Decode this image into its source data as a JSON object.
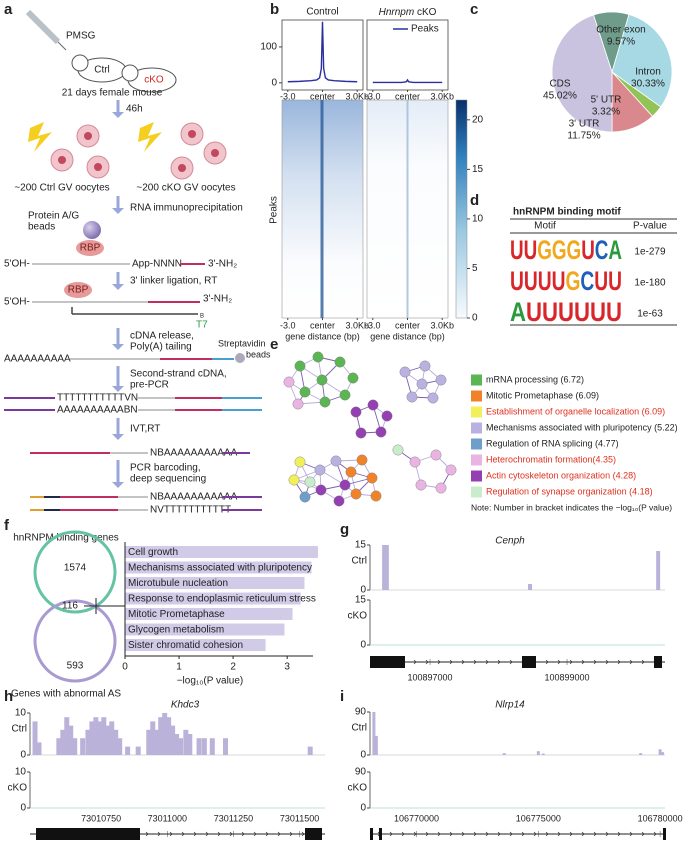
{
  "panel_labels": [
    "a",
    "b",
    "c",
    "d",
    "e",
    "f",
    "g",
    "h",
    "i"
  ],
  "workflow": {
    "injection": "PMSG",
    "ctrl": "Ctrl",
    "cko": "cKO",
    "mouse": "21 days female mouse",
    "time": "46h",
    "ctrl_oocytes": "~200 Ctrl GV oocytes",
    "cko_oocytes": "~200 cKO GV oocytes",
    "steps": [
      [
        "RNA immunoprecipitation"
      ],
      [
        "3' linker ligation, RT"
      ],
      [
        "cDNA release,",
        "Poly(A) tailing"
      ],
      [
        "Second-strand cDNA,",
        "pre-PCR"
      ],
      [
        "IVT,RT"
      ],
      [
        "PCR barcoding,",
        "deep sequencing"
      ]
    ],
    "beads": [
      "Protein A/G",
      "beads"
    ],
    "rbp": "RBP",
    "five_oh": "5'OH-",
    "linker": "App-NNNN",
    "three_nh2": "3'-NH₂",
    "b": "B",
    "t7": "T7",
    "strep": [
      "Streptavidin",
      "beads"
    ],
    "polya": "AAAAAAAAAA",
    "seqs": [
      "TTTTTTTTTTTVN",
      "AAAAAAAAAABN",
      "NBAAAAAAAAAAA",
      "NBAAAAAAAAAAA",
      "NVTTTTTTTTTTT"
    ]
  },
  "motif": {
    "title": "hnRNPM binding motif",
    "header": [
      "Motif",
      "P-value"
    ],
    "rows": [
      {
        "motif": "UUGGGUCA",
        "p": "1e-279"
      },
      {
        "motif": "UUUUGCUU",
        "p": "1e-180"
      },
      {
        "motif": "AUUUUUU",
        "p": "1e-63"
      }
    ],
    "letter_colors": {
      "U": "#d8262b",
      "G": "#f2a81d",
      "C": "#1f5fb8",
      "A": "#2b9a3c"
    }
  },
  "network": {
    "legend": [
      {
        "label": "mRNA processing (6.72)",
        "color": "#5ab552",
        "label_color": "#222222"
      },
      {
        "label": "Mitotic Prometaphase (6.09)",
        "color": "#f0832a",
        "label_color": "#222222"
      },
      {
        "label": "Establishment of organelle localization (6.09)",
        "color": "#f2f05a",
        "label_color": "#e0301e"
      },
      {
        "label": "Mechanisms associated with pluripotency (5.22)",
        "color": "#b9b1df",
        "label_color": "#222222"
      },
      {
        "label": "Regulation of RNA splicing (4.77)",
        "color": "#6d9fca",
        "label_color": "#222222"
      },
      {
        "label": "Heterochromatin formation(4.35)",
        "color": "#e9b3e2",
        "label_color": "#e0301e"
      },
      {
        "label": "Actin cytoskeleton organization (4.28)",
        "color": "#9440b3",
        "label_color": "#e0301e"
      },
      {
        "label": "Regulation of synapse organization (4.18)",
        "color": "#c9eccb",
        "label_color": "#e0301e"
      }
    ],
    "note": "Note: Number in bracket indicates the −log₁₀(P value)"
  },
  "chart_data": [
    {
      "type": "pie",
      "categories": [
        "Other exon",
        "Intron",
        "5' UTR",
        "3' UTR",
        "CDS"
      ],
      "values": [
        9.57,
        30.33,
        3.32,
        11.75,
        45.02
      ],
      "value_labels": [
        "9.57%",
        "30.33%",
        "3.32%",
        "11.75%",
        "45.02%"
      ],
      "colors": [
        "#6e9b8a",
        "#a6d9e3",
        "#92c356",
        "#d9888d",
        "#cac3e0"
      ]
    },
    {
      "type": "hbar",
      "categories": [
        "Cell growth",
        "Mechanisms associated with pluripotency",
        "Microtubule nucleation",
        "Response to endoplasmic reticulum stress",
        "Mitotic Prometaphase",
        "Glycogen metabolism",
        "Sister chromatid cohesion"
      ],
      "values": [
        3.57,
        3.45,
        3.32,
        3.25,
        3.1,
        2.95,
        2.6
      ],
      "color": "#d1cbe8",
      "xlim": [
        0,
        3.7
      ],
      "xticks": [
        0,
        1,
        2,
        3
      ],
      "x_label": "−log₁₀(P value)",
      "venn": {
        "sets": [
          "hnRNPM binding genes",
          "Genes with abnormal AS"
        ],
        "counts": [
          1574,
          116,
          593
        ],
        "colors": [
          "#64c3a2",
          "#a99bd2"
        ]
      }
    },
    {
      "type": "profile",
      "panels": [
        {
          "title": "Control",
          "values": [
            3,
            4,
            6,
            8,
            14,
            40,
            170,
            40,
            14,
            8,
            6,
            4,
            3
          ]
        },
        {
          "title": "Hnrnpm cKO",
          "values": [
            1,
            1,
            1,
            1,
            2,
            3,
            8,
            3,
            2,
            1,
            1,
            1,
            1
          ]
        }
      ],
      "x": [
        -3,
        -2,
        -1,
        -0.5,
        -0.25,
        -0.1,
        0,
        0.1,
        0.25,
        0.5,
        1,
        2,
        3
      ],
      "color": "#2b2f9e",
      "legend": "Peaks",
      "xlim": [
        -3.5,
        3.5
      ],
      "xticks": [
        {
          "value": -3,
          "label": "-3.0"
        },
        {
          "value": 0,
          "label": "center"
        },
        {
          "value": 3,
          "label": "3.0Kb"
        }
      ],
      "ylim": [
        -20,
        175
      ],
      "yticks": [
        0,
        100
      ],
      "y_label": "Peaks",
      "x_label": "gene distance (bp)",
      "colorbar": {
        "lim": [
          0,
          22
        ],
        "ticks": [
          0,
          5,
          10,
          15,
          20
        ]
      }
    },
    {
      "type": "track",
      "title": "Cenph",
      "track_labels": [
        "Ctrl",
        "cKO"
      ],
      "color": "#bbb2da",
      "ylim": [
        0,
        15
      ],
      "yticks": [
        0,
        15
      ],
      "xlim": [
        100896124,
        100900430
      ],
      "xticks": [
        100897000,
        100899000
      ],
      "x": [
        100896330,
        100896370,
        100898460,
        100900330
      ],
      "values": [
        15,
        15,
        2,
        13
      ]
    },
    {
      "type": "track",
      "title": "Khdc3",
      "track_labels": [
        "Ctrl",
        "cKO"
      ],
      "color": "#bbb2da",
      "ylim": [
        0,
        10
      ],
      "yticks": [
        0,
        10
      ],
      "xlim": [
        73010481,
        73011596
      ],
      "xticks": [
        73010750,
        73011000,
        73011250,
        73011500
      ],
      "x": [
        73010500,
        73010515,
        73010590,
        73010605,
        73010620,
        73010635,
        73010650,
        73010680,
        73010700,
        73010715,
        73010730,
        73010745,
        73010760,
        73010775,
        73010790,
        73010805,
        73010820,
        73010850,
        73010890,
        73010930,
        73010945,
        73010960,
        73010975,
        73010990,
        73011005,
        73011020,
        73011035,
        73011050,
        73011070,
        73011085,
        73011120,
        73011140,
        73011170,
        73011220,
        73011540
      ],
      "values": [
        8,
        3,
        4,
        6,
        9,
        7,
        4,
        4,
        6,
        8,
        9,
        8,
        9,
        7,
        8,
        6,
        4,
        2,
        2,
        6,
        8,
        6,
        9,
        10,
        9,
        7,
        5,
        4,
        6,
        5,
        4,
        4,
        4,
        4,
        2
      ]
    },
    {
      "type": "track",
      "title": "Nlrp14",
      "track_labels": [
        "Ctrl",
        "cKO"
      ],
      "color": "#bbb2da",
      "ylim": [
        0,
        90
      ],
      "yticks": [
        0,
        90
      ],
      "xlim": [
        106768090,
        106780200
      ],
      "xticks": [
        106770000,
        106775000,
        106780000
      ],
      "x": [
        106768250,
        106768350,
        106773600,
        106775000,
        106775200,
        106779200,
        106780000,
        106780100
      ],
      "values": [
        90,
        40,
        4,
        8,
        3,
        4,
        12,
        6
      ]
    }
  ]
}
